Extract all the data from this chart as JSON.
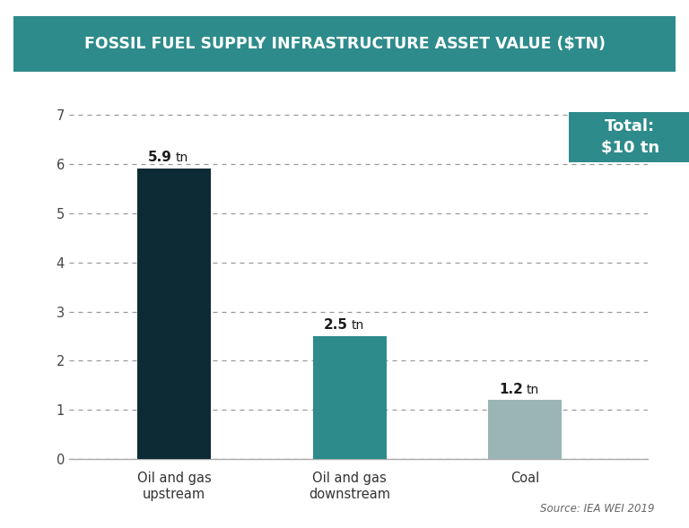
{
  "title": "FOSSIL FUEL SUPPLY INFRASTRUCTURE ASSET VALUE ($TN)",
  "title_bg_color": "#2e8b8b",
  "title_text_color": "#ffffff",
  "categories": [
    "Oil and gas\nupstream",
    "Oil and gas\ndownstream",
    "Coal"
  ],
  "values": [
    5.9,
    2.5,
    1.2
  ],
  "bar_colors": [
    "#0d2b35",
    "#2e8b8b",
    "#9bb5b5"
  ],
  "value_labels": [
    "5.9 tn",
    "2.5 tn",
    "1.2 tn"
  ],
  "ylim": [
    0,
    7.5
  ],
  "yticks": [
    0,
    1,
    2,
    3,
    4,
    5,
    6,
    7
  ],
  "grid_color": "#999999",
  "bg_color": "#ffffff",
  "source_text": "Source: IEA WEI 2019",
  "annotation_text": "Total:\n$10 tn",
  "annotation_bg_color": "#2e8b8b",
  "annotation_text_color": "#ffffff",
  "bar_width": 0.42
}
